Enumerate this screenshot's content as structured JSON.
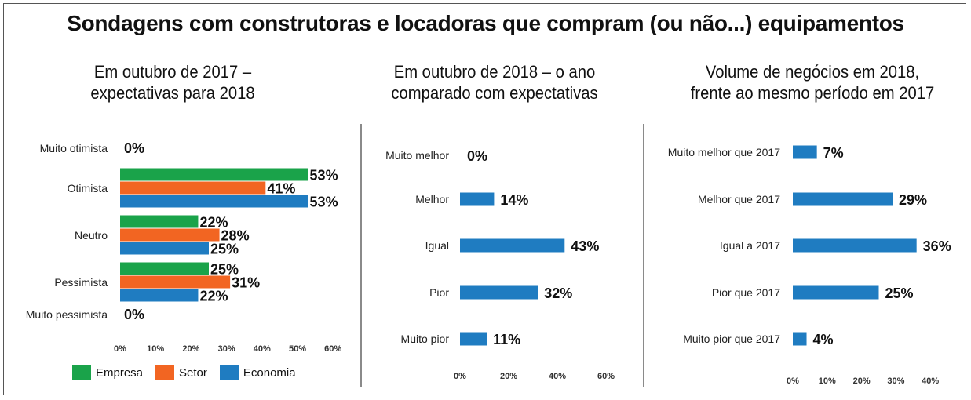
{
  "title": "Sondagens com construtoras e locadoras que compram (ou não...) equipamentos",
  "colors": {
    "empresa": "#1aa34a",
    "setor": "#f26522",
    "economia": "#1f7cc1",
    "single": "#1f7cc1"
  },
  "chart_data": [
    {
      "type": "bar",
      "orientation": "horizontal",
      "title_lines": [
        "Em outubro de 2017 –",
        "expectativas para 2018"
      ],
      "categories": [
        "Muito otimista",
        "Otimista",
        "Neutro",
        "Pessimista",
        "Muito pessimista"
      ],
      "series": [
        {
          "name": "Empresa",
          "values": [
            0,
            53,
            22,
            25,
            0
          ]
        },
        {
          "name": "Setor",
          "values": [
            0,
            41,
            28,
            31,
            0
          ]
        },
        {
          "name": "Economia",
          "values": [
            0,
            53,
            25,
            22,
            0
          ]
        }
      ],
      "xlim": [
        0,
        60
      ],
      "xticks": [
        "0%",
        "10%",
        "20%",
        "30%",
        "40%",
        "50%",
        "60%"
      ],
      "legend": [
        "Empresa",
        "Setor",
        "Economia"
      ],
      "legend_position": "bottom-left",
      "grid": false
    },
    {
      "type": "bar",
      "orientation": "horizontal",
      "title_lines": [
        "Em outubro de 2018 – o ano",
        "comparado com expectativas"
      ],
      "categories": [
        "Muito melhor",
        "Melhor",
        "Igual",
        "Pior",
        "Muito pior"
      ],
      "values": [
        0,
        14,
        43,
        32,
        11
      ],
      "xlim": [
        0,
        60
      ],
      "xticks": [
        "0%",
        "20%",
        "40%",
        "60%"
      ],
      "grid": false
    },
    {
      "type": "bar",
      "orientation": "horizontal",
      "title_lines": [
        "Volume de negócios em 2018,",
        "frente ao mesmo período em 2017"
      ],
      "categories": [
        "Muito melhor que 2017",
        "Melhor que 2017",
        "Igual a 2017",
        "Pior que 2017",
        "Muito pior que 2017"
      ],
      "values": [
        7,
        29,
        36,
        25,
        4
      ],
      "xlim": [
        0,
        40
      ],
      "xticks": [
        "0%",
        "10%",
        "20%",
        "30%",
        "40%"
      ],
      "grid": false
    }
  ]
}
